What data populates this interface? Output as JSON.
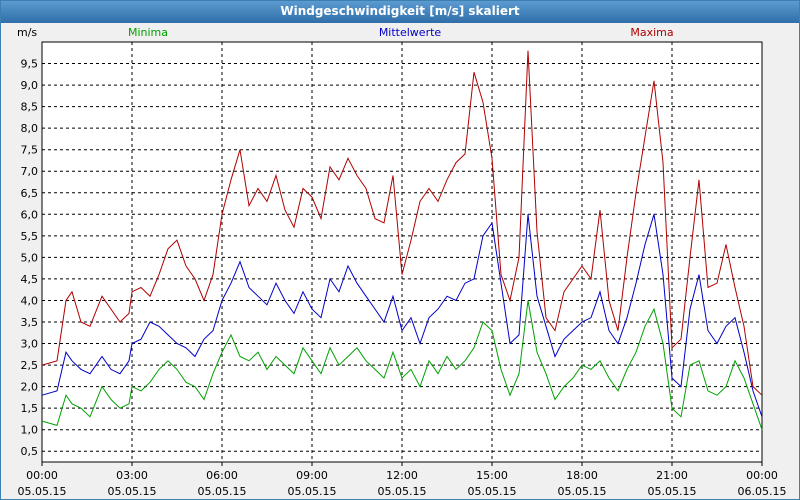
{
  "window": {
    "title": "Windgeschwindigkeit [m/s] skaliert"
  },
  "chart_data": {
    "type": "line",
    "title": "Windgeschwindigkeit [m/s] skaliert",
    "ylabel": "m/s",
    "xlabel": "",
    "ylim": [
      0.25,
      10.0
    ],
    "xlim": [
      0,
      24
    ],
    "grid": true,
    "legend_placement": "top",
    "yticks": [
      "0,5",
      "1,0",
      "1,5",
      "2,0",
      "2,5",
      "3,0",
      "3,5",
      "4,0",
      "4,5",
      "5,0",
      "5,5",
      "6,0",
      "6,5",
      "7,0",
      "7,5",
      "8,0",
      "8,5",
      "9,0",
      "9,5"
    ],
    "xticks": [
      {
        "time": "00:00",
        "date": "05.05.15"
      },
      {
        "time": "03:00",
        "date": "05.05.15"
      },
      {
        "time": "06:00",
        "date": "05.05.15"
      },
      {
        "time": "09:00",
        "date": "05.05.15"
      },
      {
        "time": "12:00",
        "date": "05.05.15"
      },
      {
        "time": "15:00",
        "date": "05.05.15"
      },
      {
        "time": "18:00",
        "date": "05.05.15"
      },
      {
        "time": "21:00",
        "date": "05.05.15"
      },
      {
        "time": "00:00",
        "date": "06.05.15"
      }
    ],
    "series": [
      {
        "name": "Minima",
        "color": "#00a000",
        "x": [
          0,
          0.5,
          0.8,
          1.0,
          1.3,
          1.6,
          2.0,
          2.3,
          2.6,
          2.9,
          3.0,
          3.3,
          3.6,
          3.9,
          4.2,
          4.5,
          4.8,
          5.1,
          5.4,
          5.7,
          6.0,
          6.3,
          6.6,
          6.9,
          7.2,
          7.5,
          7.8,
          8.1,
          8.4,
          8.7,
          9.0,
          9.3,
          9.6,
          9.9,
          10.2,
          10.5,
          10.8,
          11.1,
          11.4,
          11.7,
          12.0,
          12.3,
          12.6,
          12.9,
          13.2,
          13.5,
          13.8,
          14.1,
          14.4,
          14.7,
          15.0,
          15.3,
          15.6,
          15.9,
          16.2,
          16.5,
          16.8,
          17.1,
          17.4,
          17.7,
          18.0,
          18.3,
          18.6,
          18.9,
          19.2,
          19.5,
          19.8,
          20.1,
          20.4,
          20.7,
          21.0,
          21.3,
          21.6,
          21.9,
          22.2,
          22.5,
          22.8,
          23.1,
          23.4,
          23.7,
          24.0
        ],
        "y": [
          1.2,
          1.1,
          1.8,
          1.6,
          1.5,
          1.3,
          2.0,
          1.7,
          1.5,
          1.6,
          2.0,
          1.9,
          2.1,
          2.4,
          2.6,
          2.4,
          2.1,
          2.0,
          1.7,
          2.3,
          2.8,
          3.2,
          2.7,
          2.6,
          2.8,
          2.4,
          2.7,
          2.5,
          2.3,
          2.9,
          2.6,
          2.3,
          2.9,
          2.5,
          2.7,
          2.9,
          2.6,
          2.4,
          2.2,
          2.8,
          2.2,
          2.4,
          2.0,
          2.6,
          2.3,
          2.7,
          2.4,
          2.6,
          2.9,
          3.5,
          3.3,
          2.4,
          1.8,
          2.3,
          4.0,
          2.8,
          2.3,
          1.7,
          2.0,
          2.2,
          2.5,
          2.4,
          2.6,
          2.2,
          1.9,
          2.4,
          2.8,
          3.4,
          3.8,
          3.0,
          1.5,
          1.3,
          2.5,
          2.6,
          1.9,
          1.8,
          2.0,
          2.6,
          2.2,
          1.6,
          1.0
        ]
      },
      {
        "name": "Mittelwerte",
        "color": "#0000c8",
        "x": [
          0,
          0.5,
          0.8,
          1.0,
          1.3,
          1.6,
          2.0,
          2.3,
          2.6,
          2.9,
          3.0,
          3.3,
          3.6,
          3.9,
          4.2,
          4.5,
          4.8,
          5.1,
          5.4,
          5.7,
          6.0,
          6.3,
          6.6,
          6.9,
          7.2,
          7.5,
          7.8,
          8.1,
          8.4,
          8.7,
          9.0,
          9.3,
          9.6,
          9.9,
          10.2,
          10.5,
          10.8,
          11.1,
          11.4,
          11.7,
          12.0,
          12.3,
          12.6,
          12.9,
          13.2,
          13.5,
          13.8,
          14.1,
          14.4,
          14.7,
          15.0,
          15.3,
          15.6,
          15.9,
          16.2,
          16.5,
          16.8,
          17.1,
          17.4,
          17.7,
          18.0,
          18.3,
          18.6,
          18.9,
          19.2,
          19.5,
          19.8,
          20.1,
          20.4,
          20.7,
          21.0,
          21.3,
          21.6,
          21.9,
          22.2,
          22.5,
          22.8,
          23.1,
          23.4,
          23.7,
          24.0
        ],
        "y": [
          1.8,
          1.9,
          2.8,
          2.6,
          2.4,
          2.3,
          2.7,
          2.4,
          2.3,
          2.6,
          3.0,
          3.1,
          3.5,
          3.4,
          3.2,
          3.0,
          2.9,
          2.7,
          3.1,
          3.3,
          4.0,
          4.4,
          4.9,
          4.3,
          4.1,
          3.9,
          4.4,
          4.0,
          3.7,
          4.2,
          3.8,
          3.6,
          4.5,
          4.2,
          4.8,
          4.4,
          4.1,
          3.8,
          3.5,
          4.1,
          3.3,
          3.6,
          3.0,
          3.6,
          3.8,
          4.1,
          4.0,
          4.4,
          4.5,
          5.5,
          5.8,
          4.4,
          3.0,
          3.2,
          6.0,
          4.1,
          3.4,
          2.7,
          3.1,
          3.3,
          3.5,
          3.6,
          4.2,
          3.3,
          3.0,
          3.6,
          4.4,
          5.3,
          6.0,
          4.6,
          2.2,
          2.0,
          3.8,
          4.6,
          3.3,
          3.0,
          3.4,
          3.6,
          2.8,
          1.9,
          1.3
        ]
      },
      {
        "name": "Maxima",
        "color": "#b00000",
        "x": [
          0,
          0.5,
          0.8,
          1.0,
          1.3,
          1.6,
          2.0,
          2.3,
          2.6,
          2.9,
          3.0,
          3.3,
          3.6,
          3.9,
          4.2,
          4.5,
          4.8,
          5.1,
          5.4,
          5.7,
          6.0,
          6.3,
          6.6,
          6.9,
          7.2,
          7.5,
          7.8,
          8.1,
          8.4,
          8.7,
          9.0,
          9.3,
          9.6,
          9.9,
          10.2,
          10.5,
          10.8,
          11.1,
          11.4,
          11.7,
          12.0,
          12.3,
          12.6,
          12.9,
          13.2,
          13.5,
          13.8,
          14.1,
          14.4,
          14.7,
          15.0,
          15.3,
          15.6,
          15.9,
          16.2,
          16.5,
          16.8,
          17.1,
          17.4,
          17.7,
          18.0,
          18.3,
          18.6,
          18.9,
          19.2,
          19.5,
          19.8,
          20.1,
          20.4,
          20.7,
          21.0,
          21.3,
          21.6,
          21.9,
          22.2,
          22.5,
          22.8,
          23.1,
          23.4,
          23.7,
          24.0
        ],
        "y": [
          2.5,
          2.6,
          4.0,
          4.2,
          3.5,
          3.4,
          4.1,
          3.8,
          3.5,
          3.7,
          4.2,
          4.3,
          4.1,
          4.6,
          5.2,
          5.4,
          4.8,
          4.5,
          4.0,
          4.6,
          6.0,
          6.8,
          7.5,
          6.2,
          6.6,
          6.3,
          6.9,
          6.1,
          5.7,
          6.6,
          6.4,
          5.9,
          7.1,
          6.8,
          7.3,
          6.9,
          6.6,
          5.9,
          5.8,
          6.9,
          4.6,
          5.4,
          6.3,
          6.6,
          6.3,
          6.8,
          7.2,
          7.4,
          9.3,
          8.6,
          7.3,
          4.6,
          4.0,
          5.0,
          9.8,
          5.6,
          3.6,
          3.3,
          4.2,
          4.5,
          4.8,
          4.5,
          6.1,
          4.0,
          3.3,
          5.0,
          6.5,
          7.8,
          9.1,
          7.2,
          2.9,
          3.1,
          5.0,
          6.8,
          4.3,
          4.4,
          5.3,
          4.3,
          3.4,
          2.0,
          1.8
        ]
      }
    ]
  }
}
